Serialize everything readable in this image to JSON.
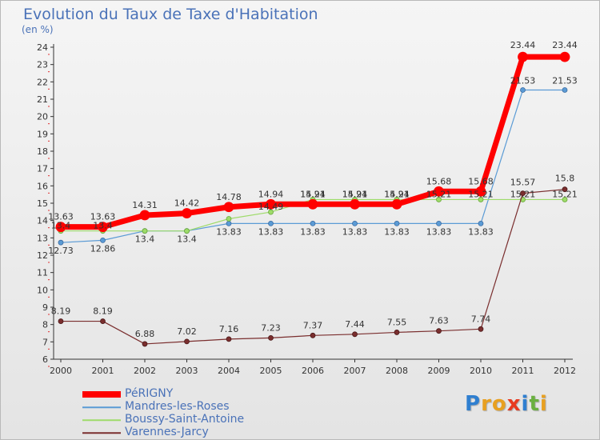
{
  "title": "Evolution du Taux de Taxe d'Habitation",
  "unit": "(en %)",
  "brand": {
    "letters": [
      "P",
      "r",
      "o",
      "x",
      "i",
      "t",
      "i"
    ]
  },
  "chart_data": {
    "type": "line",
    "title": "Evolution du Taux de Taxe d'Habitation",
    "ylabel": "(en %)",
    "ylim": [
      6,
      24
    ],
    "yticks": [
      "6",
      "7",
      "8",
      "9",
      "10",
      "11",
      "12",
      "13",
      "14",
      "15",
      "16",
      "17",
      "18",
      "19",
      "20",
      "21",
      "22",
      "23",
      "24"
    ],
    "categories": [
      "2000",
      "2001",
      "2002",
      "2003",
      "2004",
      "2005",
      "2006",
      "2007",
      "2008",
      "2009",
      "2010",
      "2011",
      "2012"
    ],
    "grid": false,
    "legend_position": "bottom-left",
    "series": [
      {
        "name": "PéRIGNY",
        "color": "#ff0000",
        "values": [
          13.63,
          13.63,
          14.31,
          14.42,
          14.78,
          14.94,
          14.94,
          14.94,
          14.94,
          15.68,
          15.68,
          23.44,
          23.44
        ],
        "labels": [
          "13.63",
          "13.63",
          "14.31",
          "14.42",
          "14.78",
          "14.94",
          "14.94",
          "14.94",
          "14.94",
          "15.68",
          "15.68",
          "23.44",
          "23.44"
        ]
      },
      {
        "name": "Mandres-les-Roses",
        "color": "#5b9bd5",
        "values": [
          12.73,
          12.86,
          13.4,
          13.4,
          13.83,
          13.83,
          13.83,
          13.83,
          13.83,
          13.83,
          13.83,
          21.53,
          21.53
        ],
        "labels": [
          "12.73",
          "12.86",
          "13.4",
          "13.4",
          "13.83",
          "13.83",
          "13.83",
          "13.83",
          "13.83",
          "13.83",
          "13.83",
          "21.53",
          "21.53"
        ]
      },
      {
        "name": "Boussy-Saint-Antoine",
        "color": "#9edb6a",
        "values": [
          13.4,
          13.4,
          13.4,
          13.4,
          14.1,
          14.49,
          15.21,
          15.21,
          15.21,
          15.21,
          15.21,
          15.21,
          15.21
        ],
        "labels": [
          "13.4",
          "13.4",
          "",
          "",
          "",
          "14.49",
          "15.21",
          "15.21",
          "15.21",
          "15.21",
          "15.21",
          "15.21",
          "15.21"
        ]
      },
      {
        "name": "Varennes-Jarcy",
        "color": "#7a2e2e",
        "values": [
          8.19,
          8.19,
          6.88,
          7.02,
          7.16,
          7.23,
          7.37,
          7.44,
          7.55,
          7.63,
          7.74,
          15.57,
          15.8
        ],
        "labels": [
          "8.19",
          "8.19",
          "6.88",
          "7.02",
          "7.16",
          "7.23",
          "7.37",
          "7.44",
          "7.55",
          "7.63",
          "7.74",
          "15.57",
          "15.8"
        ]
      }
    ]
  }
}
